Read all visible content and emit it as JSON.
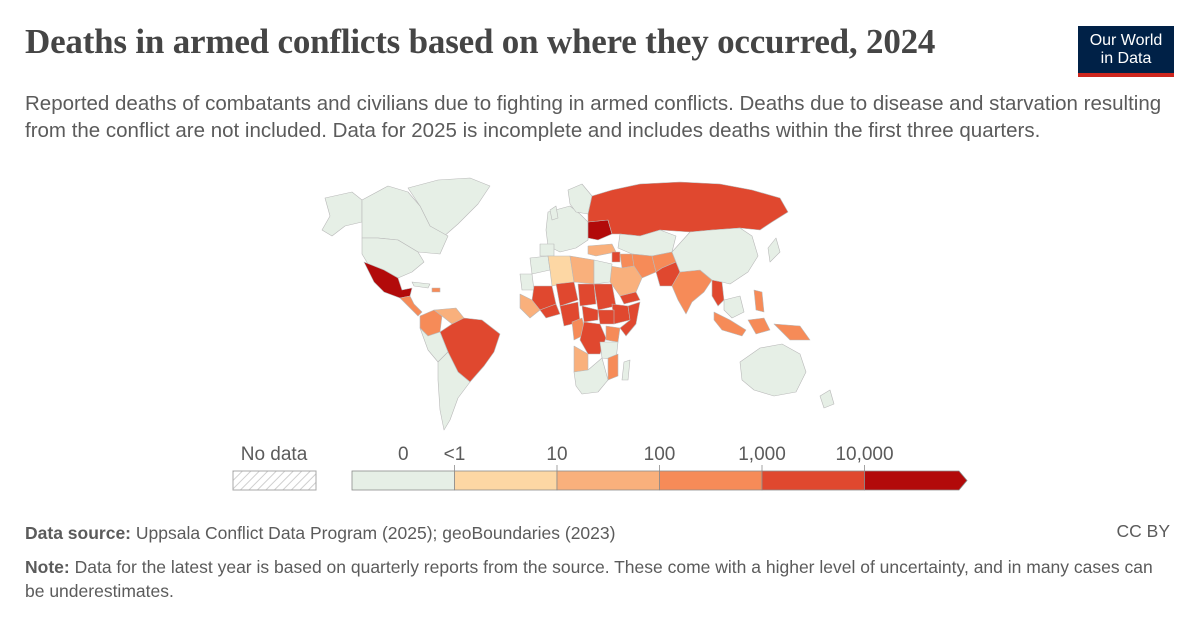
{
  "header": {
    "title": "Deaths in armed conflicts based on where they occurred, 2024",
    "subtitle": "Reported deaths of combatants and civilians due to fighting in armed conflicts. Deaths due to disease and starvation resulting from the conflict are not included. Data for 2025 is incomplete and includes deaths within the first three quarters.",
    "logo_line1": "Our World",
    "logo_line2": "in Data"
  },
  "legend": {
    "no_data_label": "No data",
    "bins": [
      {
        "label": "0",
        "color": "#e6efe6"
      },
      {
        "label": "<1",
        "color": "#fdd7a4"
      },
      {
        "label": "10",
        "color": "#f9b07c"
      },
      {
        "label": "100",
        "color": "#f68b58"
      },
      {
        "label": "1,000",
        "color": "#e0482f"
      },
      {
        "label": "10,000",
        "color": "#b20a0a"
      }
    ]
  },
  "chart_data": {
    "type": "choropleth",
    "year": 2024,
    "scale_thresholds": [
      "0",
      "<1",
      "10",
      "100",
      "1,000",
      "10,000"
    ],
    "regions": [
      {
        "name": "Mexico",
        "bin": "10,000"
      },
      {
        "name": "Ukraine",
        "bin": "10,000"
      },
      {
        "name": "Russia",
        "bin": "1,000"
      },
      {
        "name": "Brazil",
        "bin": "1,000"
      },
      {
        "name": "Colombia",
        "bin": "100"
      },
      {
        "name": "Sudan",
        "bin": "1,000"
      },
      {
        "name": "DR Congo",
        "bin": "1,000"
      },
      {
        "name": "Nigeria",
        "bin": "1,000"
      },
      {
        "name": "Ethiopia",
        "bin": "1,000"
      },
      {
        "name": "Somalia",
        "bin": "1,000"
      },
      {
        "name": "Mali",
        "bin": "1,000"
      },
      {
        "name": "Burkina Faso",
        "bin": "1,000"
      },
      {
        "name": "Myanmar",
        "bin": "1,000"
      },
      {
        "name": "Pakistan",
        "bin": "1,000"
      },
      {
        "name": "Syria",
        "bin": "1,000"
      },
      {
        "name": "Yemen",
        "bin": "1,000"
      },
      {
        "name": "Iraq",
        "bin": "100"
      },
      {
        "name": "Afghanistan",
        "bin": "100"
      },
      {
        "name": "India",
        "bin": "100"
      },
      {
        "name": "Iran",
        "bin": "100"
      },
      {
        "name": "Cameroon",
        "bin": "100"
      },
      {
        "name": "Mozambique",
        "bin": "100"
      },
      {
        "name": "Philippines",
        "bin": "100"
      },
      {
        "name": "Indonesia",
        "bin": "100"
      },
      {
        "name": "Libya",
        "bin": "10"
      },
      {
        "name": "Algeria",
        "bin": "<1"
      },
      {
        "name": "Angola",
        "bin": "10"
      },
      {
        "name": "United States",
        "bin": "0"
      },
      {
        "name": "Canada",
        "bin": "0"
      },
      {
        "name": "China",
        "bin": "0"
      },
      {
        "name": "Australia",
        "bin": "0"
      }
    ],
    "source": "Uppsala Conflict Data Program (2025); geoBoundaries (2023)"
  },
  "footer": {
    "source_label": "Data source:",
    "source_text": "Uppsala Conflict Data Program (2025); geoBoundaries (2023)",
    "license": "CC BY",
    "note_label": "Note:",
    "note_text": "Data for the latest year is based on quarterly reports from the source. These come with a higher level of uncertainty, and in many cases can be underestimates."
  }
}
